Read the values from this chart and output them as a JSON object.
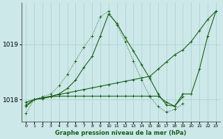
{
  "xlabel": "Graphe pression niveau de la mer (hPa)",
  "x_ticks": [
    0,
    1,
    2,
    3,
    4,
    5,
    6,
    7,
    8,
    9,
    10,
    11,
    12,
    13,
    14,
    15,
    16,
    17,
    18,
    19,
    20,
    21,
    22,
    23
  ],
  "yticks": [
    1018,
    1019
  ],
  "ylim": [
    1017.6,
    1019.75
  ],
  "xlim": [
    -0.5,
    23.5
  ],
  "bg_color": "#cce8e8",
  "grid_color": "#aacfcf",
  "line_color": "#1a5e1a",
  "line_dotted": [
    1017.75,
    1018.0,
    1018.05,
    1018.1,
    1018.25,
    1018.45,
    1018.7,
    1018.95,
    1019.15,
    1019.5,
    1019.6,
    1019.35,
    1019.05,
    1018.7,
    1018.35,
    1018.05,
    1017.87,
    1017.77,
    1017.82,
    1017.92,
    null,
    null,
    null,
    null
  ],
  "line_zigzag": [
    1017.87,
    1018.0,
    1018.02,
    1018.05,
    1018.1,
    1018.2,
    1018.35,
    1018.58,
    1018.78,
    1019.15,
    1019.55,
    1019.38,
    1019.12,
    1018.88,
    1018.63,
    1018.38,
    1018.1,
    1017.9,
    1017.88,
    1018.1,
    1018.1,
    1018.55,
    1019.15,
    1019.6
  ],
  "line_diagonal": [
    1017.9,
    1018.0,
    1018.03,
    1018.06,
    1018.09,
    1018.12,
    1018.15,
    1018.18,
    1018.21,
    1018.24,
    1018.27,
    1018.3,
    1018.33,
    1018.36,
    1018.39,
    1018.42,
    1018.55,
    1018.68,
    1018.81,
    1018.9,
    1019.05,
    1019.25,
    1019.45,
    1019.6
  ],
  "line_flat": [
    1017.95,
    1018.0,
    1018.02,
    1018.05,
    1018.06,
    1018.06,
    1018.06,
    1018.06,
    1018.06,
    1018.06,
    1018.06,
    1018.06,
    1018.06,
    1018.06,
    1018.06,
    1018.06,
    1018.06,
    1017.95,
    1017.88,
    1018.05,
    null,
    null,
    null,
    null
  ]
}
